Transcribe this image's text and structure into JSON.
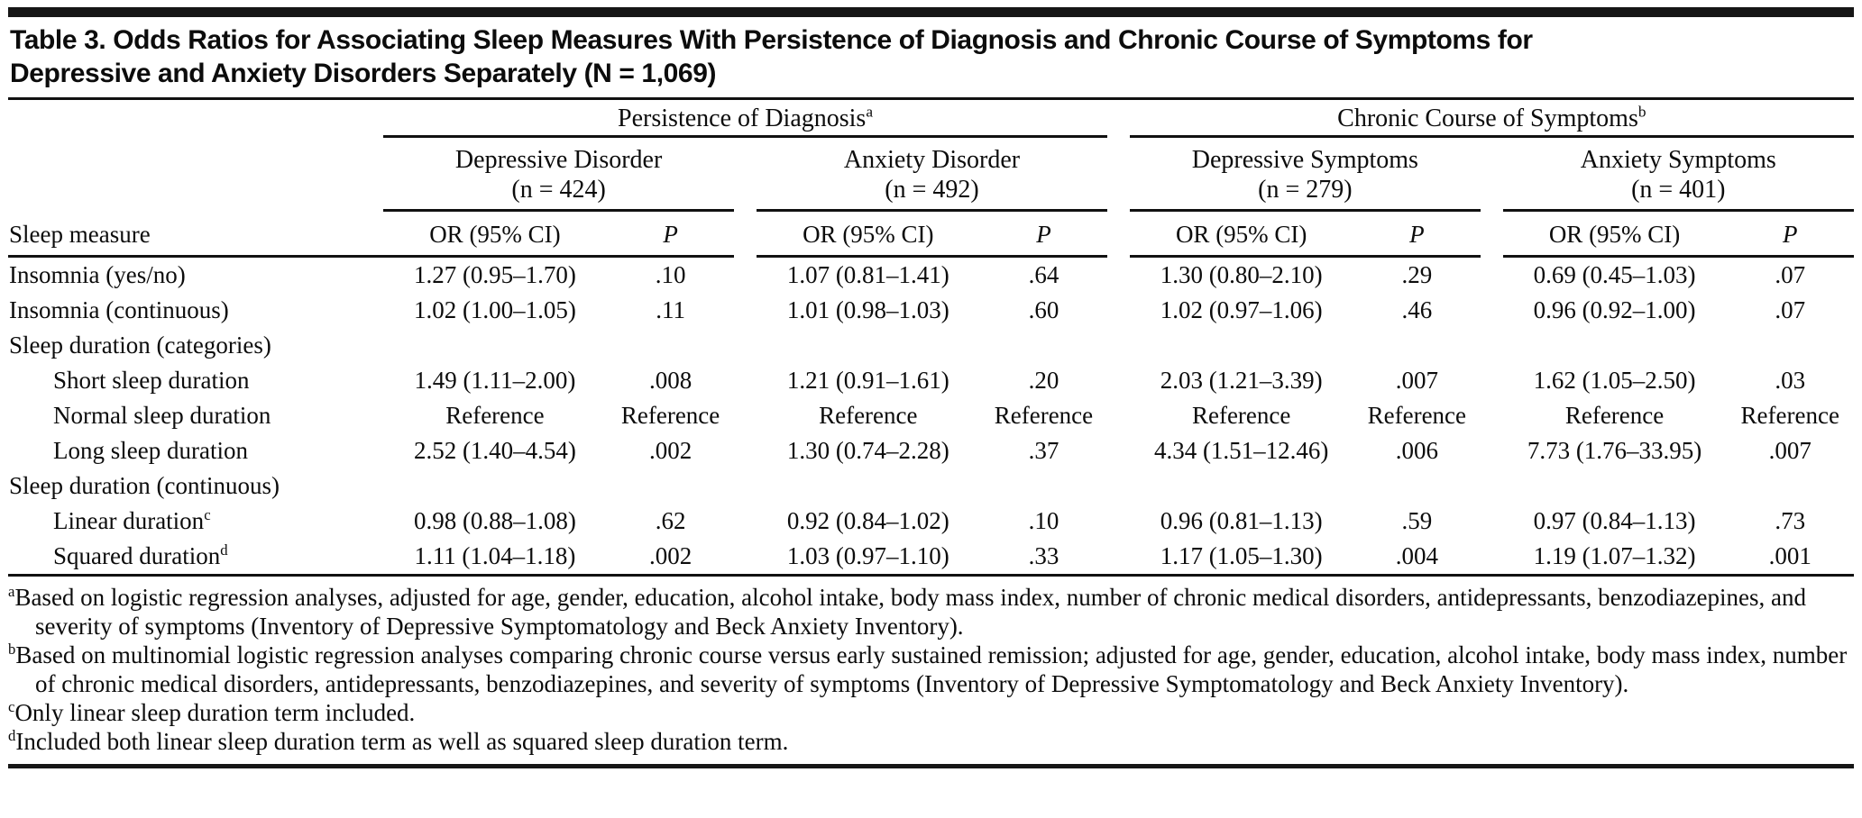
{
  "title": {
    "line1": "Table 3. Odds Ratios for Associating Sleep Measures With Persistence of Diagnosis and Chronic Course of Symptoms for",
    "line2": "Depressive and Anxiety Disorders Separately (N = 1,069)"
  },
  "table": {
    "groups": [
      {
        "label": "Persistence of Diagnosis",
        "marker": "a",
        "subgroups": [
          {
            "label": "Depressive Disorder",
            "n": "(n = 424)"
          },
          {
            "label": "Anxiety Disorder",
            "n": "(n = 492)"
          }
        ]
      },
      {
        "label": "Chronic Course of Symptoms",
        "marker": "b",
        "subgroups": [
          {
            "label": "Depressive Symptoms",
            "n": "(n = 279)"
          },
          {
            "label": "Anxiety Symptoms",
            "n": "(n = 401)"
          }
        ]
      }
    ],
    "col_headers": {
      "measure": "Sleep measure",
      "or": "OR (95% CI)",
      "p": "P"
    },
    "rows": [
      {
        "label": "Insomnia (yes/no)",
        "indent": false,
        "cells": [
          "1.27 (0.95–1.70)",
          ".10",
          "1.07 (0.81–1.41)",
          ".64",
          "1.30 (0.80–2.10)",
          ".29",
          "0.69 (0.45–1.03)",
          ".07"
        ]
      },
      {
        "label": "Insomnia (continuous)",
        "indent": false,
        "cells": [
          "1.02 (1.00–1.05)",
          ".11",
          "1.01 (0.98–1.03)",
          ".60",
          "1.02 (0.97–1.06)",
          ".46",
          "0.96 (0.92–1.00)",
          ".07"
        ]
      },
      {
        "label": "Sleep duration (categories)",
        "indent": false,
        "cells": [
          "",
          "",
          "",
          "",
          "",
          "",
          "",
          ""
        ]
      },
      {
        "label": "Short sleep duration",
        "indent": true,
        "cells": [
          "1.49 (1.11–2.00)",
          ".008",
          "1.21 (0.91–1.61)",
          ".20",
          "2.03 (1.21–3.39)",
          ".007",
          "1.62 (1.05–2.50)",
          ".03"
        ]
      },
      {
        "label": "Normal sleep duration",
        "indent": true,
        "cells": [
          "Reference",
          "Reference",
          "Reference",
          "Reference",
          "Reference",
          "Reference",
          "Reference",
          "Reference"
        ]
      },
      {
        "label": "Long sleep duration",
        "indent": true,
        "cells": [
          "2.52 (1.40–4.54)",
          ".002",
          "1.30 (0.74–2.28)",
          ".37",
          "4.34 (1.51–12.46)",
          ".006",
          "7.73 (1.76–33.95)",
          ".007"
        ]
      },
      {
        "label": "Sleep duration (continuous)",
        "indent": false,
        "cells": [
          "",
          "",
          "",
          "",
          "",
          "",
          "",
          ""
        ]
      },
      {
        "label": "Linear duration",
        "marker": "c",
        "indent": true,
        "cells": [
          "0.98 (0.88–1.08)",
          ".62",
          "0.92 (0.84–1.02)",
          ".10",
          "0.96 (0.81–1.13)",
          ".59",
          "0.97 (0.84–1.13)",
          ".73"
        ]
      },
      {
        "label": "Squared duration",
        "marker": "d",
        "indent": true,
        "cells": [
          "1.11 (1.04–1.18)",
          ".002",
          "1.03 (0.97–1.10)",
          ".33",
          "1.17 (1.05–1.30)",
          ".004",
          "1.19 (1.07–1.32)",
          ".001"
        ]
      }
    ]
  },
  "footnotes": [
    {
      "marker": "a",
      "text": "Based on logistic regression analyses, adjusted for age, gender, education, alcohol intake, body mass index, number of chronic medical disorders, antidepressants, benzodiazepines, and severity of symptoms (Inventory of Depressive Symptomatology and Beck Anxiety Inventory)."
    },
    {
      "marker": "b",
      "text": "Based on multinomial logistic regression analyses comparing chronic course versus early sustained remission; adjusted for age, gender, education, alcohol intake, body mass index, number of chronic medical disorders, antidepressants, benzodiazepines, and severity of symptoms (Inventory of Depressive Symptomatology and Beck Anxiety Inventory)."
    },
    {
      "marker": "c",
      "text": "Only linear sleep duration term included."
    },
    {
      "marker": "d",
      "text": "Included both linear sleep duration term as well as squared sleep duration term."
    }
  ]
}
